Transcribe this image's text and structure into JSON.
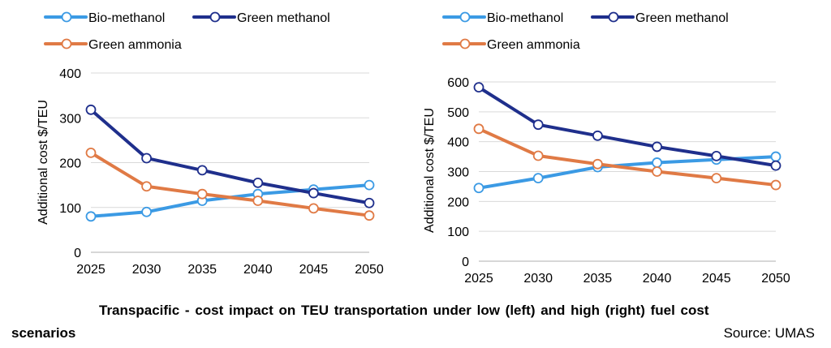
{
  "chart_data": [
    {
      "type": "line",
      "x": [
        "2025",
        "2030",
        "2035",
        "2040",
        "2045",
        "2050"
      ],
      "ylabel": "Additional cost $/TEU",
      "ylim": [
        0,
        400
      ],
      "yticks": [
        0,
        100,
        200,
        300,
        400
      ],
      "grid": true,
      "legend": "top",
      "series": [
        {
          "name": "Bio-methanol",
          "color": "#3b9ae4",
          "values": [
            80,
            90,
            115,
            130,
            140,
            150
          ]
        },
        {
          "name": "Green methanol",
          "color": "#1f2f8c",
          "values": [
            318,
            210,
            183,
            155,
            132,
            110
          ]
        },
        {
          "name": "Green ammonia",
          "color": "#e07a45",
          "values": [
            222,
            147,
            130,
            115,
            98,
            82
          ]
        }
      ]
    },
    {
      "type": "line",
      "x": [
        "2025",
        "2030",
        "2035",
        "2040",
        "2045",
        "2050"
      ],
      "ylabel": "Additional cost $/TEU",
      "ylim": [
        0,
        600
      ],
      "yticks": [
        0,
        100,
        200,
        300,
        400,
        500,
        600
      ],
      "grid": true,
      "legend": "top",
      "series": [
        {
          "name": "Bio-methanol",
          "color": "#3b9ae4",
          "values": [
            245,
            278,
            315,
            330,
            340,
            350
          ]
        },
        {
          "name": "Green methanol",
          "color": "#1f2f8c",
          "values": [
            582,
            457,
            420,
            383,
            352,
            320
          ]
        },
        {
          "name": "Green ammonia",
          "color": "#e07a45",
          "values": [
            443,
            353,
            325,
            300,
            278,
            255
          ]
        }
      ]
    }
  ],
  "caption": {
    "line1": "Transpacific - cost impact on TEU transportation under low (left) and high (right) fuel cost",
    "line2": "scenarios",
    "source": "Source: UMAS"
  }
}
